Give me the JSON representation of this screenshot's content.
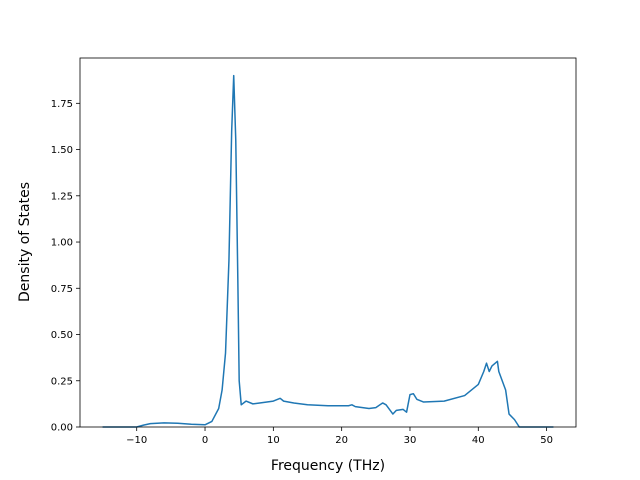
{
  "chart_data": {
    "type": "line",
    "x_label": "Frequency (THz)",
    "y_label": "Density of States",
    "xlim": [
      -18.3,
      54.3
    ],
    "ylim": [
      0,
      1.995
    ],
    "xticks": [
      {
        "value": -10,
        "label": "−10"
      },
      0,
      10,
      20,
      30,
      40,
      50
    ],
    "yticks": [
      {
        "value": 0,
        "label": "0.00"
      },
      {
        "value": 0.25,
        "label": "0.25"
      },
      {
        "value": 0.5,
        "label": "0.50"
      },
      {
        "value": 0.75,
        "label": "0.75"
      },
      {
        "value": 1.0,
        "label": "1.00"
      },
      {
        "value": 1.25,
        "label": "1.25"
      },
      {
        "value": 1.5,
        "label": "1.50"
      },
      {
        "value": 1.75,
        "label": "1.75"
      }
    ],
    "series": [
      {
        "color": "#1f77b4",
        "x": [
          -15,
          -10,
          -9,
          -8,
          -6,
          -4,
          -2,
          0,
          1,
          2,
          2.5,
          3,
          3.5,
          3.9,
          4.2,
          4.5,
          4.8,
          5,
          5.3,
          6,
          7,
          8,
          10,
          11,
          11.5,
          13,
          15,
          18,
          21,
          21.5,
          22,
          24,
          25,
          26,
          26.5,
          27.5,
          28,
          29,
          29.5,
          30,
          30.5,
          31,
          32,
          35,
          38,
          40,
          40.8,
          41.2,
          41.6,
          42,
          42.8,
          43,
          44,
          44.5,
          45.3,
          46,
          51
        ],
        "values": [
          0,
          0,
          0.01,
          0.018,
          0.022,
          0.02,
          0.015,
          0.012,
          0.03,
          0.1,
          0.2,
          0.4,
          0.9,
          1.6,
          1.9,
          1.55,
          0.8,
          0.25,
          0.12,
          0.14,
          0.125,
          0.13,
          0.14,
          0.155,
          0.14,
          0.13,
          0.12,
          0.115,
          0.115,
          0.12,
          0.11,
          0.1,
          0.105,
          0.13,
          0.12,
          0.07,
          0.09,
          0.095,
          0.08,
          0.175,
          0.18,
          0.15,
          0.135,
          0.14,
          0.17,
          0.23,
          0.3,
          0.345,
          0.3,
          0.33,
          0.355,
          0.3,
          0.2,
          0.07,
          0.04,
          0,
          0
        ]
      }
    ]
  }
}
